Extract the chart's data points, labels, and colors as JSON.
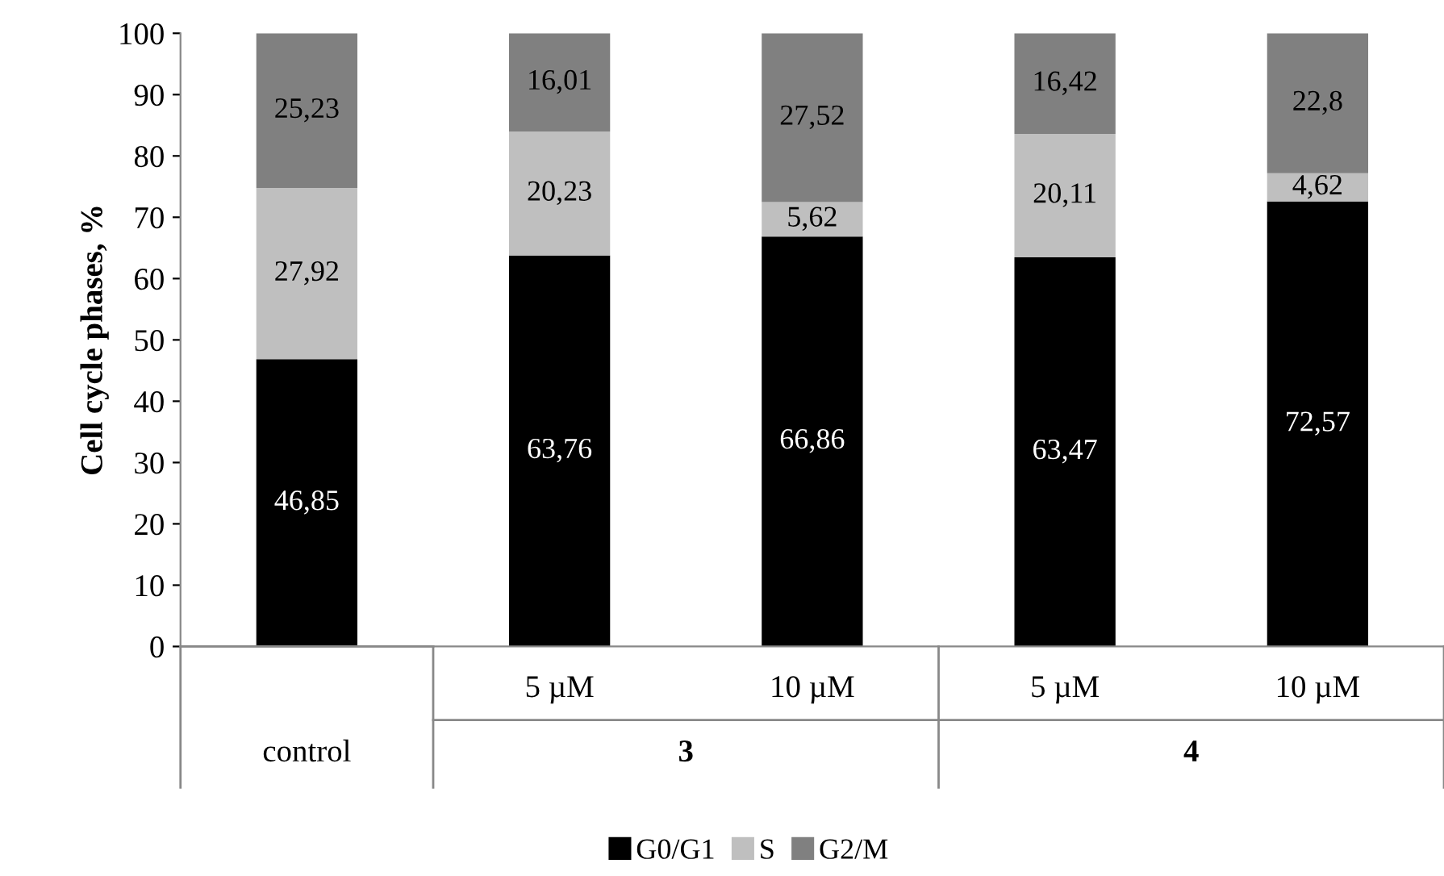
{
  "chart_data": {
    "type": "bar",
    "stacked": true,
    "ylabel": "Cell cycle phases, %",
    "categories": [
      null,
      "5 µM",
      "10 µM",
      "5 µM",
      "10 µM"
    ],
    "series": [
      {
        "name": "G0/G1",
        "color": "#000000",
        "values": [
          46.85,
          63.76,
          66.86,
          63.47,
          72.57
        ],
        "value_labels": [
          "46,85",
          "63,76",
          "66,86",
          "63,47",
          "72,57"
        ]
      },
      {
        "name": "S",
        "color": "#bfbfbf",
        "values": [
          27.92,
          20.23,
          5.62,
          20.11,
          4.62
        ],
        "value_labels": [
          "27,92",
          "20,23",
          "5,62",
          "20,11",
          "4,62"
        ]
      },
      {
        "name": "G2/M",
        "color": "#808080",
        "values": [
          25.23,
          16.01,
          27.52,
          16.42,
          22.8
        ],
        "value_labels": [
          "25,23",
          "16,01",
          "27,52",
          "16,42",
          "22,8"
        ]
      }
    ],
    "annotations": [
      "control",
      "3",
      "4"
    ],
    "ylim": [
      0,
      100
    ],
    "yticks": [
      0,
      10,
      20,
      30,
      40,
      50,
      60,
      70,
      80,
      90,
      100
    ],
    "grid": false,
    "legend": "bottom"
  }
}
